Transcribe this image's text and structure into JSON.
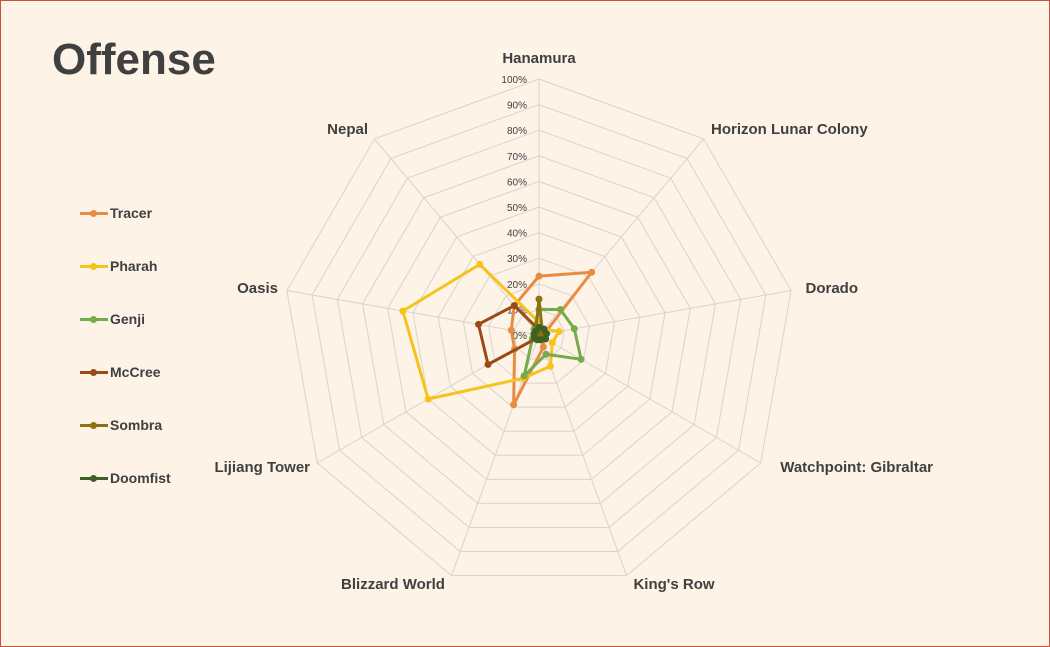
{
  "chart_data": {
    "type": "radar",
    "title": "Offense",
    "categories": [
      "Hanamura",
      "Horizon Lunar Colony",
      "Dorado",
      "Watchpoint: Gibraltar",
      "King's Row",
      "Blizzard World",
      "Lijiang Tower",
      "Oasis",
      "Nepal"
    ],
    "rlim": [
      0,
      100
    ],
    "ticks": [
      "0%",
      "10%",
      "20%",
      "30%",
      "40%",
      "50%",
      "60%",
      "70%",
      "80%",
      "90%",
      "100%"
    ],
    "grid": true,
    "legend": "left",
    "series": [
      {
        "name": "Tracer",
        "color": "#e88b45",
        "values": [
          23,
          32,
          2,
          2,
          5,
          29,
          11,
          11,
          15
        ]
      },
      {
        "name": "Pharah",
        "color": "#f6c31c",
        "values": [
          5,
          3,
          8,
          6,
          13,
          18,
          50,
          54,
          36
        ]
      },
      {
        "name": "Genji",
        "color": "#75ab4c",
        "values": [
          10,
          13,
          14,
          19,
          8,
          17,
          3,
          2,
          3
        ]
      },
      {
        "name": "McCree",
        "color": "#9b4a13",
        "values": [
          2,
          1,
          1,
          2,
          2,
          1,
          23,
          24,
          15
        ]
      },
      {
        "name": "Sombra",
        "color": "#8d7214",
        "values": [
          14,
          2,
          1,
          1,
          2,
          1,
          2,
          2,
          2
        ]
      },
      {
        "name": "Doomfist",
        "color": "#3c6122",
        "values": [
          3,
          3,
          3,
          3,
          2,
          2,
          2,
          2,
          2
        ]
      }
    ]
  }
}
